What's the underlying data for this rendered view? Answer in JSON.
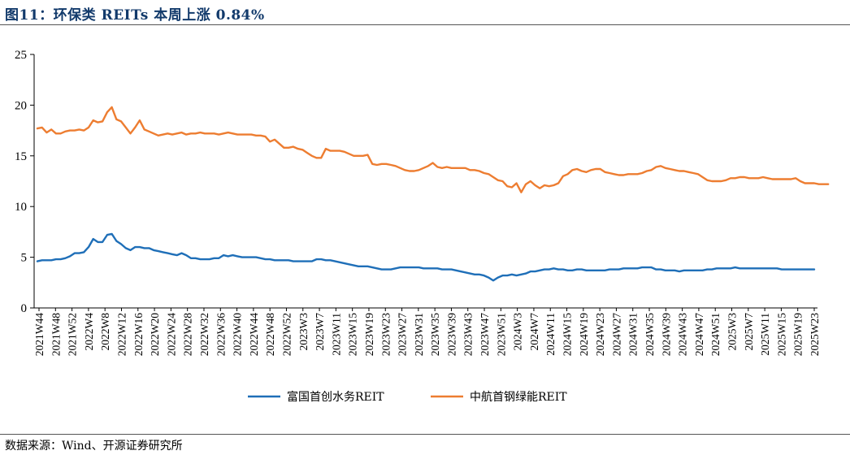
{
  "header": {
    "title": "图11：环保类 REITs 本周上涨 0.84%"
  },
  "footer": {
    "source": "数据来源：Wind、开源证券研究所"
  },
  "chart_data": {
    "type": "line",
    "ylim": [
      0,
      25
    ],
    "yticks": [
      0,
      5,
      10,
      15,
      20,
      25
    ],
    "xtick_labels": [
      "2021W44",
      "2021W48",
      "2021W52",
      "2022W4",
      "2022W8",
      "2022W12",
      "2022W16",
      "2022W20",
      "2022W24",
      "2022W28",
      "2022W32",
      "2022W36",
      "2022W40",
      "2022W44",
      "2022W48",
      "2022W52",
      "2023W3",
      "2023W7",
      "2023W11",
      "2023W15",
      "2023W19",
      "2023W23",
      "2023W27",
      "2023W31",
      "2023W35",
      "2023W39",
      "2023W43",
      "2023W47",
      "2023W51",
      "2024W3",
      "2024W7",
      "2024W11",
      "2024W15",
      "2024W19",
      "2024W23",
      "2024W27",
      "2024W31",
      "2024W35",
      "2024W39",
      "2024W43",
      "2024W47",
      "2024W51",
      "2025W3",
      "2025W7",
      "2025W11",
      "2025W15",
      "2025W19",
      "2025W23"
    ],
    "grid": false,
    "legend_position": "bottom-center",
    "series": [
      {
        "name": "富国首创水务REIT",
        "color": "#1f6fb8",
        "values": [
          4.6,
          4.7,
          4.7,
          4.7,
          4.8,
          4.8,
          4.9,
          5.1,
          5.4,
          5.4,
          5.5,
          6.0,
          6.8,
          6.5,
          6.5,
          7.2,
          7.3,
          6.6,
          6.3,
          5.9,
          5.7,
          6.0,
          6.0,
          5.9,
          5.9,
          5.7,
          5.6,
          5.5,
          5.4,
          5.3,
          5.2,
          5.4,
          5.2,
          4.9,
          4.9,
          4.8,
          4.8,
          4.8,
          4.9,
          4.9,
          5.2,
          5.1,
          5.2,
          5.1,
          5.0,
          5.0,
          5.0,
          5.0,
          4.9,
          4.8,
          4.8,
          4.7,
          4.7,
          4.7,
          4.7,
          4.6,
          4.6,
          4.6,
          4.6,
          4.6,
          4.8,
          4.8,
          4.7,
          4.7,
          4.6,
          4.5,
          4.4,
          4.3,
          4.2,
          4.1,
          4.1,
          4.1,
          4.0,
          3.9,
          3.8,
          3.8,
          3.8,
          3.9,
          4.0,
          4.0,
          4.0,
          4.0,
          4.0,
          3.9,
          3.9,
          3.9,
          3.9,
          3.8,
          3.8,
          3.8,
          3.7,
          3.6,
          3.5,
          3.4,
          3.3,
          3.3,
          3.2,
          3.0,
          2.7,
          3.0,
          3.2,
          3.2,
          3.3,
          3.2,
          3.3,
          3.4,
          3.6,
          3.6,
          3.7,
          3.8,
          3.8,
          3.9,
          3.8,
          3.8,
          3.7,
          3.7,
          3.8,
          3.8,
          3.7,
          3.7,
          3.7,
          3.7,
          3.7,
          3.8,
          3.8,
          3.8,
          3.9,
          3.9,
          3.9,
          3.9,
          4.0,
          4.0,
          4.0,
          3.8,
          3.8,
          3.7,
          3.7,
          3.7,
          3.6,
          3.7,
          3.7,
          3.7,
          3.7,
          3.7,
          3.8,
          3.8,
          3.9,
          3.9,
          3.9,
          3.9,
          4.0,
          3.9,
          3.9,
          3.9,
          3.9,
          3.9,
          3.9,
          3.9,
          3.9,
          3.9,
          3.8,
          3.8,
          3.8,
          3.8,
          3.8,
          3.8,
          3.8,
          3.8
        ]
      },
      {
        "name": "中航首钢绿能REIT",
        "color": "#ed7d31",
        "values": [
          17.7,
          17.8,
          17.3,
          17.6,
          17.2,
          17.2,
          17.4,
          17.5,
          17.5,
          17.6,
          17.5,
          17.8,
          18.5,
          18.3,
          18.4,
          19.3,
          19.8,
          18.6,
          18.4,
          17.8,
          17.2,
          17.8,
          18.5,
          17.6,
          17.4,
          17.2,
          17.0,
          17.1,
          17.2,
          17.1,
          17.2,
          17.3,
          17.1,
          17.2,
          17.2,
          17.3,
          17.2,
          17.2,
          17.2,
          17.1,
          17.2,
          17.3,
          17.2,
          17.1,
          17.1,
          17.1,
          17.1,
          17.0,
          17.0,
          16.9,
          16.4,
          16.6,
          16.2,
          15.8,
          15.8,
          15.9,
          15.7,
          15.6,
          15.3,
          15.0,
          14.8,
          14.8,
          15.7,
          15.5,
          15.5,
          15.5,
          15.4,
          15.2,
          15.0,
          15.0,
          15.0,
          15.1,
          14.2,
          14.1,
          14.2,
          14.2,
          14.1,
          14.0,
          13.8,
          13.6,
          13.5,
          13.5,
          13.6,
          13.8,
          14.0,
          14.3,
          13.9,
          13.8,
          13.9,
          13.8,
          13.8,
          13.8,
          13.8,
          13.6,
          13.6,
          13.5,
          13.3,
          13.2,
          12.9,
          12.6,
          12.5,
          12.0,
          11.9,
          12.3,
          11.4,
          12.2,
          12.5,
          12.1,
          11.8,
          12.1,
          12.0,
          12.1,
          12.3,
          13.0,
          13.2,
          13.6,
          13.7,
          13.5,
          13.4,
          13.6,
          13.7,
          13.7,
          13.4,
          13.3,
          13.2,
          13.1,
          13.1,
          13.2,
          13.2,
          13.2,
          13.3,
          13.5,
          13.6,
          13.9,
          14.0,
          13.8,
          13.7,
          13.6,
          13.5,
          13.5,
          13.4,
          13.3,
          13.2,
          12.9,
          12.6,
          12.5,
          12.5,
          12.5,
          12.6,
          12.8,
          12.8,
          12.9,
          12.9,
          12.8,
          12.8,
          12.8,
          12.9,
          12.8,
          12.7,
          12.7,
          12.7,
          12.7,
          12.7,
          12.8,
          12.5,
          12.3,
          12.3,
          12.3,
          12.2,
          12.2,
          12.2
        ]
      }
    ]
  }
}
